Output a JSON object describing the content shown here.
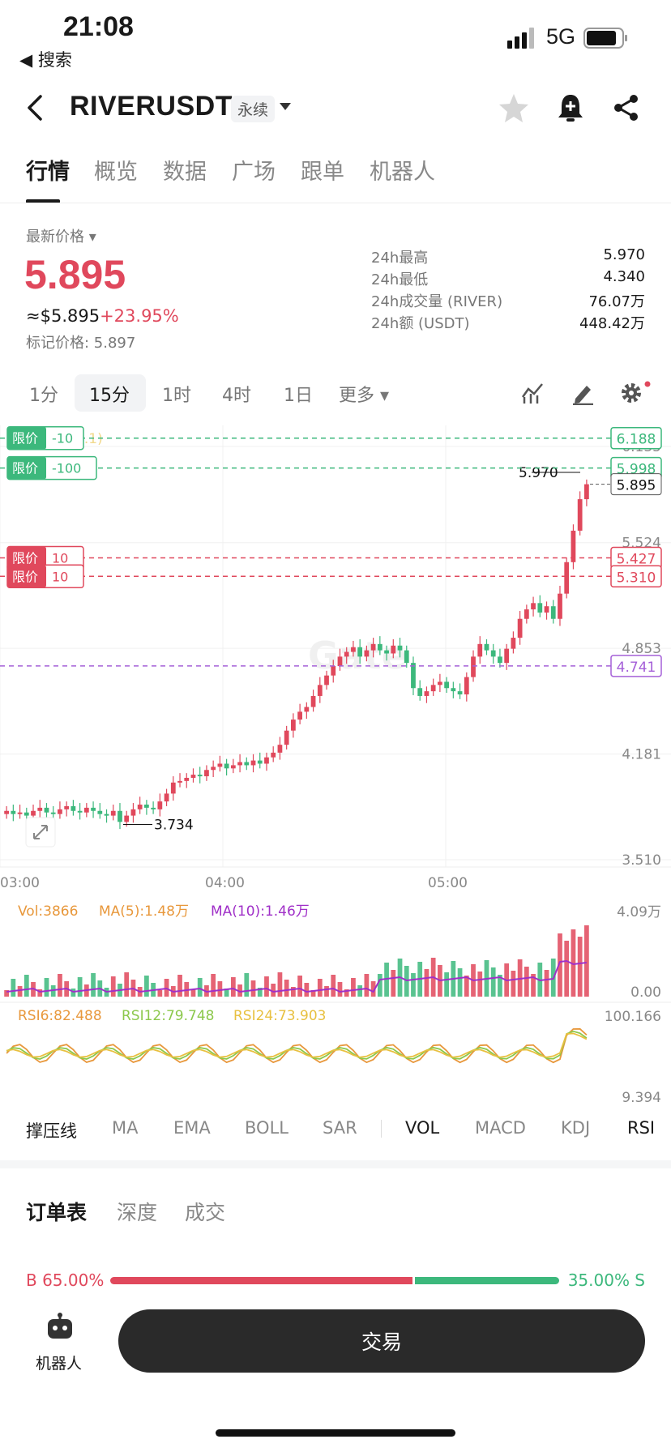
{
  "status_bar": {
    "time": "21:08",
    "back_app": "◀ 搜索",
    "network": "5G"
  },
  "header": {
    "symbol": "RIVERUSDT",
    "contract_type": "永续"
  },
  "tabs": [
    "行情",
    "概览",
    "数据",
    "广场",
    "跟单",
    "机器人"
  ],
  "price": {
    "label": "最新价格",
    "last": "5.895",
    "approx": "≈$5.895",
    "change": "+23.95%",
    "mark": "标记价格: 5.897",
    "stats": [
      {
        "label": "24h最高",
        "value": "5.970"
      },
      {
        "label": "24h最低",
        "value": "4.340"
      },
      {
        "label": "24h成交量 (RIVER)",
        "value": "76.07万"
      },
      {
        "label": "24h额 (USDT)",
        "value": "448.42万"
      }
    ]
  },
  "intervals": [
    "1分",
    "15分",
    "1时",
    "4时",
    "1日",
    "更多"
  ],
  "chart": {
    "overlay_text": "撑压线 (1.1)",
    "price_axis": [
      "6.135",
      "5.524",
      "4.853",
      "4.181",
      "3.510"
    ],
    "time_axis": [
      "03:00",
      "04:00",
      "05:00"
    ],
    "high_label": "5.970",
    "low_label": "3.734",
    "orders": [
      {
        "tag": "限价",
        "qty": "-10",
        "price": "6.188",
        "side": "buy"
      },
      {
        "tag": "限价",
        "qty": "-100",
        "price": "5.998",
        "side": "buy"
      },
      {
        "tag": "限价",
        "qty": "10",
        "price": "5.427",
        "side": "sell"
      },
      {
        "tag": "限价",
        "qty": "10",
        "price": "5.310",
        "side": "sell"
      }
    ],
    "current_price": "5.895",
    "avg_line_price": "4.741",
    "vol_label": "Vol:3866",
    "ma5_label": "MA(5):1.48万",
    "ma10_label": "MA(10):1.46万",
    "vol_axis": [
      "4.09万",
      "0.00"
    ],
    "rsi6": "RSI6:82.488",
    "rsi12": "RSI12:79.748",
    "rsi24": "RSI24:73.903",
    "rsi_axis": [
      "100.166",
      "9.394"
    ],
    "watermark": "Gate",
    "colors": {
      "up": "#e0485c",
      "down": "#3cb87c"
    }
  },
  "indicators": [
    "撑压线",
    "MA",
    "EMA",
    "BOLL",
    "SAR",
    "VOL",
    "MACD",
    "KDJ",
    "RSI"
  ],
  "orderbook": {
    "tabs": [
      "订单表",
      "深度",
      "成交"
    ],
    "buy": "B 65.00%",
    "sell": "35.00% S",
    "buy_ratio": 0.65
  },
  "bottom": {
    "robot": "机器人",
    "trade": "交易"
  }
}
